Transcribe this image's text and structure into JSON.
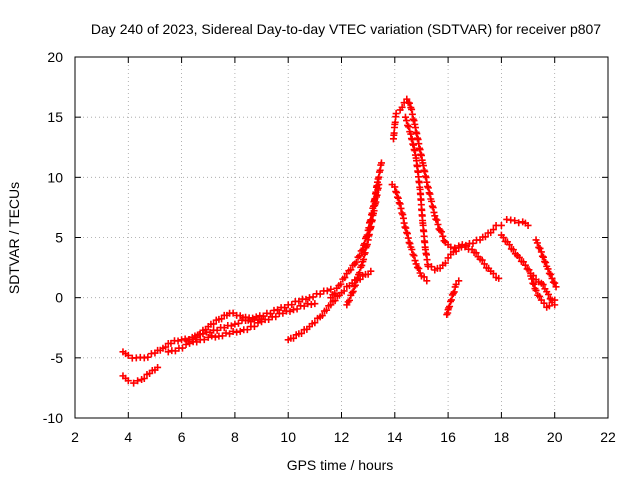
{
  "chart_data": {
    "type": "scatter",
    "title": "Day 240 of 2023, Sidereal Day-to-day VTEC variation (SDTVAR) for receiver p807",
    "xlabel": "GPS time / hours",
    "ylabel": "SDTVAR / TECUs",
    "xlim": [
      2,
      22
    ],
    "ylim": [
      -10,
      20
    ],
    "xticks": [
      2,
      4,
      6,
      8,
      10,
      12,
      14,
      16,
      18,
      20,
      22
    ],
    "yticks": [
      -10,
      -5,
      0,
      5,
      10,
      15,
      20
    ],
    "grid": true,
    "marker": "+",
    "color": "#ff0000",
    "series": [
      {
        "name": "track-a",
        "points": [
          [
            3.8,
            -4.5
          ],
          [
            4.0,
            -4.8
          ],
          [
            4.3,
            -5.0
          ],
          [
            4.6,
            -5.0
          ],
          [
            5.0,
            -4.6
          ],
          [
            5.3,
            -4.2
          ],
          [
            5.6,
            -3.8
          ],
          [
            6.0,
            -3.5
          ],
          [
            6.4,
            -3.3
          ],
          [
            6.8,
            -3.0
          ],
          [
            7.2,
            -2.7
          ],
          [
            7.6,
            -2.5
          ],
          [
            8.0,
            -2.2
          ],
          [
            8.4,
            -1.9
          ],
          [
            8.8,
            -1.6
          ],
          [
            9.2,
            -1.3
          ],
          [
            9.6,
            -1.0
          ],
          [
            10.0,
            -0.6
          ],
          [
            10.4,
            -0.3
          ],
          [
            10.8,
            0.0
          ],
          [
            11.2,
            0.3
          ],
          [
            11.6,
            0.7
          ]
        ]
      },
      {
        "name": "track-b",
        "points": [
          [
            3.8,
            -6.5
          ],
          [
            4.0,
            -6.9
          ],
          [
            4.2,
            -7.1
          ],
          [
            4.5,
            -6.8
          ],
          [
            4.8,
            -6.3
          ],
          [
            5.1,
            -5.8
          ]
        ]
      },
      {
        "name": "track-c",
        "points": [
          [
            5.5,
            -4.5
          ],
          [
            5.9,
            -4.2
          ],
          [
            6.3,
            -3.8
          ],
          [
            6.7,
            -3.5
          ],
          [
            7.0,
            -3.3
          ],
          [
            7.4,
            -3.2
          ],
          [
            7.8,
            -3.0
          ],
          [
            8.2,
            -2.8
          ],
          [
            8.6,
            -2.4
          ],
          [
            9.0,
            -2.0
          ],
          [
            9.4,
            -1.6
          ],
          [
            9.8,
            -1.3
          ],
          [
            10.2,
            -1.0
          ],
          [
            10.6,
            -0.7
          ],
          [
            11.0,
            -0.5
          ]
        ]
      },
      {
        "name": "track-d",
        "points": [
          [
            6.2,
            -3.6
          ],
          [
            6.6,
            -3.1
          ],
          [
            7.0,
            -2.4
          ],
          [
            7.4,
            -1.8
          ],
          [
            7.8,
            -1.3
          ],
          [
            8.2,
            -1.5
          ],
          [
            8.6,
            -2.0
          ],
          [
            9.0,
            -1.8
          ]
        ]
      },
      {
        "name": "track-e",
        "points": [
          [
            10.0,
            -3.5
          ],
          [
            10.4,
            -3.0
          ],
          [
            10.8,
            -2.4
          ],
          [
            11.2,
            -1.6
          ],
          [
            11.6,
            -0.6
          ],
          [
            12.0,
            0.4
          ],
          [
            12.4,
            1.2
          ],
          [
            12.8,
            1.8
          ],
          [
            13.1,
            2.2
          ]
        ]
      },
      {
        "name": "track-f",
        "points": [
          [
            11.6,
            0.0
          ],
          [
            11.9,
            1.0
          ],
          [
            12.2,
            2.0
          ],
          [
            12.5,
            2.8
          ],
          [
            12.8,
            4.0
          ],
          [
            13.0,
            5.6
          ],
          [
            13.2,
            7.6
          ],
          [
            13.35,
            9.6
          ],
          [
            13.5,
            11.2
          ]
        ]
      },
      {
        "name": "track-g",
        "points": [
          [
            12.2,
            -0.6
          ],
          [
            12.4,
            0.4
          ],
          [
            12.6,
            1.6
          ],
          [
            12.8,
            3.0
          ],
          [
            13.0,
            4.8
          ],
          [
            13.2,
            7.0
          ],
          [
            13.4,
            9.4
          ]
        ]
      },
      {
        "name": "track-h",
        "points": [
          [
            13.95,
            13.2
          ],
          [
            14.0,
            14.4
          ],
          [
            14.05,
            15.3
          ],
          [
            14.2,
            15.6
          ],
          [
            14.35,
            16.2
          ],
          [
            14.45,
            16.5
          ],
          [
            14.6,
            15.8
          ],
          [
            14.75,
            14.4
          ],
          [
            14.9,
            12.8
          ],
          [
            15.05,
            11.2
          ],
          [
            15.2,
            9.6
          ],
          [
            15.35,
            8.2
          ],
          [
            15.5,
            6.8
          ],
          [
            15.7,
            5.6
          ],
          [
            15.9,
            4.6
          ],
          [
            16.1,
            4.2
          ],
          [
            16.4,
            4.3
          ],
          [
            16.8,
            4.5
          ],
          [
            17.2,
            4.8
          ],
          [
            17.6,
            5.4
          ],
          [
            17.8,
            6.0
          ],
          [
            18.0,
            6.0
          ]
        ]
      },
      {
        "name": "track-i",
        "points": [
          [
            14.4,
            15.0
          ],
          [
            14.6,
            13.6
          ],
          [
            14.8,
            11.6
          ],
          [
            14.95,
            9.0
          ],
          [
            15.05,
            6.2
          ],
          [
            15.15,
            4.0
          ],
          [
            15.25,
            2.6
          ],
          [
            15.5,
            2.3
          ],
          [
            15.8,
            2.7
          ],
          [
            16.0,
            3.3
          ],
          [
            16.2,
            3.8
          ],
          [
            16.5,
            4.2
          ],
          [
            16.9,
            4.0
          ],
          [
            17.2,
            3.2
          ],
          [
            17.6,
            2.2
          ],
          [
            17.9,
            1.6
          ]
        ]
      },
      {
        "name": "track-j",
        "points": [
          [
            13.9,
            9.4
          ],
          [
            14.0,
            9.2
          ],
          [
            14.3,
            6.9
          ],
          [
            14.35,
            6.2
          ],
          [
            14.6,
            4.2
          ],
          [
            14.8,
            2.8
          ],
          [
            15.0,
            1.8
          ],
          [
            15.2,
            1.4
          ]
        ]
      },
      {
        "name": "track-k",
        "points": [
          [
            16.0,
            -1.0
          ],
          [
            15.95,
            -1.4
          ],
          [
            16.3,
            1.1
          ],
          [
            16.4,
            1.4
          ]
        ]
      },
      {
        "name": "track-l",
        "points": [
          [
            18.2,
            6.5
          ],
          [
            18.5,
            6.4
          ],
          [
            18.8,
            6.3
          ],
          [
            19.0,
            6.0
          ]
        ]
      },
      {
        "name": "track-m",
        "points": [
          [
            18.0,
            5.2
          ],
          [
            18.3,
            4.4
          ],
          [
            18.6,
            3.5
          ],
          [
            18.9,
            2.7
          ],
          [
            19.1,
            2.0
          ],
          [
            19.3,
            1.5
          ],
          [
            19.5,
            1.2
          ],
          [
            19.7,
            0.5
          ],
          [
            19.9,
            -0.2
          ],
          [
            20.0,
            -0.6
          ]
        ]
      },
      {
        "name": "track-n",
        "points": [
          [
            19.3,
            4.8
          ],
          [
            19.5,
            3.8
          ],
          [
            19.7,
            2.6
          ],
          [
            19.9,
            1.6
          ],
          [
            20.05,
            0.9
          ]
        ]
      },
      {
        "name": "track-o",
        "points": [
          [
            19.1,
            1.8
          ],
          [
            19.3,
            0.6
          ],
          [
            19.5,
            -0.2
          ],
          [
            19.7,
            -0.8
          ],
          [
            19.9,
            -0.4
          ],
          [
            20.0,
            -0.2
          ]
        ]
      }
    ]
  }
}
